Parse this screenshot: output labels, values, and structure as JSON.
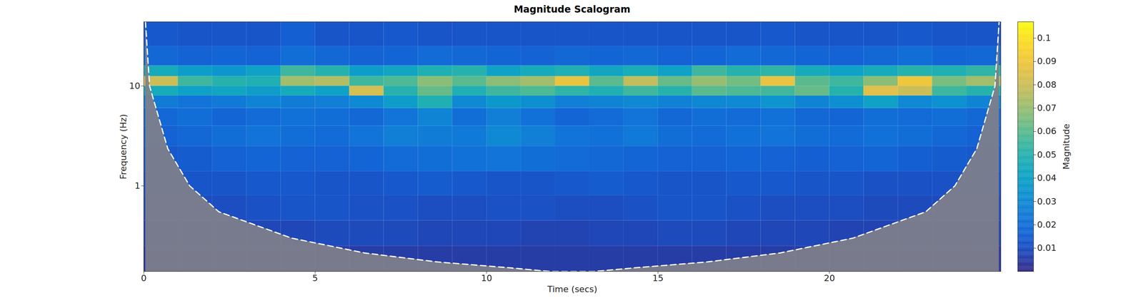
{
  "chart_data": {
    "type": "heatmap",
    "title": "Magnitude Scalogram",
    "x_label": "Time (secs)",
    "y_label": "Frequency (Hz)",
    "xlim": [
      0,
      25
    ],
    "xticks": [
      0,
      5,
      10,
      15,
      20
    ],
    "ylim": [
      0.139,
      43.9
    ],
    "yticks": [
      1,
      10
    ],
    "log": "y",
    "time_bins": [
      0,
      1,
      2,
      3,
      4,
      5,
      6,
      7,
      8,
      9,
      10,
      11,
      12,
      13,
      14,
      15,
      16,
      17,
      18,
      19,
      20,
      21,
      22,
      23,
      24,
      25
    ],
    "frequency_bins": [
      0.139,
      0.25,
      0.45,
      0.8,
      1.4,
      2.5,
      4,
      6,
      8,
      10,
      12.5,
      16,
      25,
      43.9
    ],
    "cells": [
      [
        0.004,
        0.004,
        0.004,
        0.005,
        0.005,
        0.005,
        0.005,
        0.005,
        0.005,
        0.005,
        0.005,
        0.005,
        0.005,
        0.005,
        0.005,
        0.005,
        0.005,
        0.005,
        0.005,
        0.005,
        0.005,
        0.005,
        0.004,
        0.004,
        0.004
      ],
      [
        0.007,
        0.007,
        0.007,
        0.008,
        0.008,
        0.009,
        0.009,
        0.009,
        0.008,
        0.008,
        0.008,
        0.007,
        0.007,
        0.008,
        0.008,
        0.009,
        0.009,
        0.008,
        0.008,
        0.008,
        0.007,
        0.007,
        0.007,
        0.007,
        0.007
      ],
      [
        0.009,
        0.01,
        0.01,
        0.011,
        0.012,
        0.012,
        0.011,
        0.011,
        0.01,
        0.01,
        0.011,
        0.011,
        0.01,
        0.01,
        0.011,
        0.012,
        0.012,
        0.011,
        0.01,
        0.01,
        0.01,
        0.009,
        0.009,
        0.009,
        0.009
      ],
      [
        0.011,
        0.012,
        0.012,
        0.013,
        0.013,
        0.012,
        0.012,
        0.013,
        0.014,
        0.013,
        0.012,
        0.012,
        0.013,
        0.014,
        0.013,
        0.012,
        0.012,
        0.013,
        0.013,
        0.012,
        0.012,
        0.011,
        0.011,
        0.011,
        0.011
      ],
      [
        0.013,
        0.014,
        0.016,
        0.017,
        0.016,
        0.016,
        0.017,
        0.019,
        0.02,
        0.021,
        0.022,
        0.02,
        0.019,
        0.018,
        0.017,
        0.016,
        0.016,
        0.017,
        0.016,
        0.015,
        0.016,
        0.017,
        0.015,
        0.014,
        0.013
      ],
      [
        0.016,
        0.018,
        0.02,
        0.022,
        0.02,
        0.019,
        0.022,
        0.026,
        0.025,
        0.024,
        0.03,
        0.026,
        0.022,
        0.021,
        0.024,
        0.02,
        0.019,
        0.021,
        0.022,
        0.02,
        0.019,
        0.021,
        0.02,
        0.018,
        0.016
      ],
      [
        0.018,
        0.02,
        0.017,
        0.019,
        0.021,
        0.02,
        0.018,
        0.022,
        0.028,
        0.02,
        0.026,
        0.021,
        0.017,
        0.019,
        0.022,
        0.018,
        0.02,
        0.019,
        0.021,
        0.018,
        0.017,
        0.02,
        0.019,
        0.02,
        0.018
      ],
      [
        0.025,
        0.022,
        0.024,
        0.028,
        0.025,
        0.026,
        0.03,
        0.038,
        0.048,
        0.03,
        0.036,
        0.032,
        0.026,
        0.028,
        0.03,
        0.027,
        0.029,
        0.03,
        0.034,
        0.028,
        0.032,
        0.04,
        0.03,
        0.033,
        0.028
      ],
      [
        0.045,
        0.04,
        0.042,
        0.038,
        0.045,
        0.04,
        0.082,
        0.05,
        0.062,
        0.048,
        0.055,
        0.058,
        0.052,
        0.048,
        0.055,
        0.05,
        0.06,
        0.058,
        0.056,
        0.062,
        0.05,
        0.085,
        0.08,
        0.055,
        0.05
      ],
      [
        0.08,
        0.055,
        0.05,
        0.048,
        0.072,
        0.075,
        0.055,
        0.058,
        0.068,
        0.06,
        0.068,
        0.072,
        0.088,
        0.06,
        0.078,
        0.062,
        0.07,
        0.064,
        0.088,
        0.06,
        0.055,
        0.068,
        0.09,
        0.065,
        0.072
      ],
      [
        0.045,
        0.038,
        0.035,
        0.04,
        0.055,
        0.05,
        0.038,
        0.042,
        0.048,
        0.05,
        0.04,
        0.045,
        0.048,
        0.042,
        0.046,
        0.04,
        0.055,
        0.05,
        0.052,
        0.045,
        0.04,
        0.045,
        0.05,
        0.048,
        0.052
      ],
      [
        0.018,
        0.016,
        0.017,
        0.016,
        0.02,
        0.018,
        0.016,
        0.017,
        0.019,
        0.018,
        0.017,
        0.016,
        0.018,
        0.017,
        0.018,
        0.016,
        0.017,
        0.019,
        0.018,
        0.017,
        0.016,
        0.018,
        0.02,
        0.017,
        0.018
      ],
      [
        0.013,
        0.012,
        0.012,
        0.012,
        0.015,
        0.012,
        0.012,
        0.013,
        0.012,
        0.012,
        0.012,
        0.012,
        0.012,
        0.012,
        0.012,
        0.012,
        0.012,
        0.012,
        0.013,
        0.012,
        0.012,
        0.012,
        0.013,
        0.012,
        0.012
      ]
    ],
    "cone_of_influence": {
      "x": [
        0.05,
        0.17,
        0.7,
        1.34,
        2.19,
        4.31,
        6.44,
        8.57,
        10.69,
        11.86,
        13.14,
        14.31,
        16.43,
        18.56,
        20.69,
        22.81,
        23.66,
        24.3,
        24.83,
        24.95
      ],
      "y": [
        43.9,
        10,
        2.36,
        1,
        0.55,
        0.3,
        0.213,
        0.173,
        0.151,
        0.139,
        0.139,
        0.151,
        0.173,
        0.213,
        0.3,
        0.55,
        1,
        2.36,
        10,
        43.9
      ]
    },
    "colorbar": {
      "label": "Magnitude",
      "range": [
        0,
        0.107
      ],
      "ticks": [
        0.01,
        0.02,
        0.03,
        0.04,
        0.05,
        0.06,
        0.07,
        0.08,
        0.09,
        0.1
      ]
    }
  }
}
